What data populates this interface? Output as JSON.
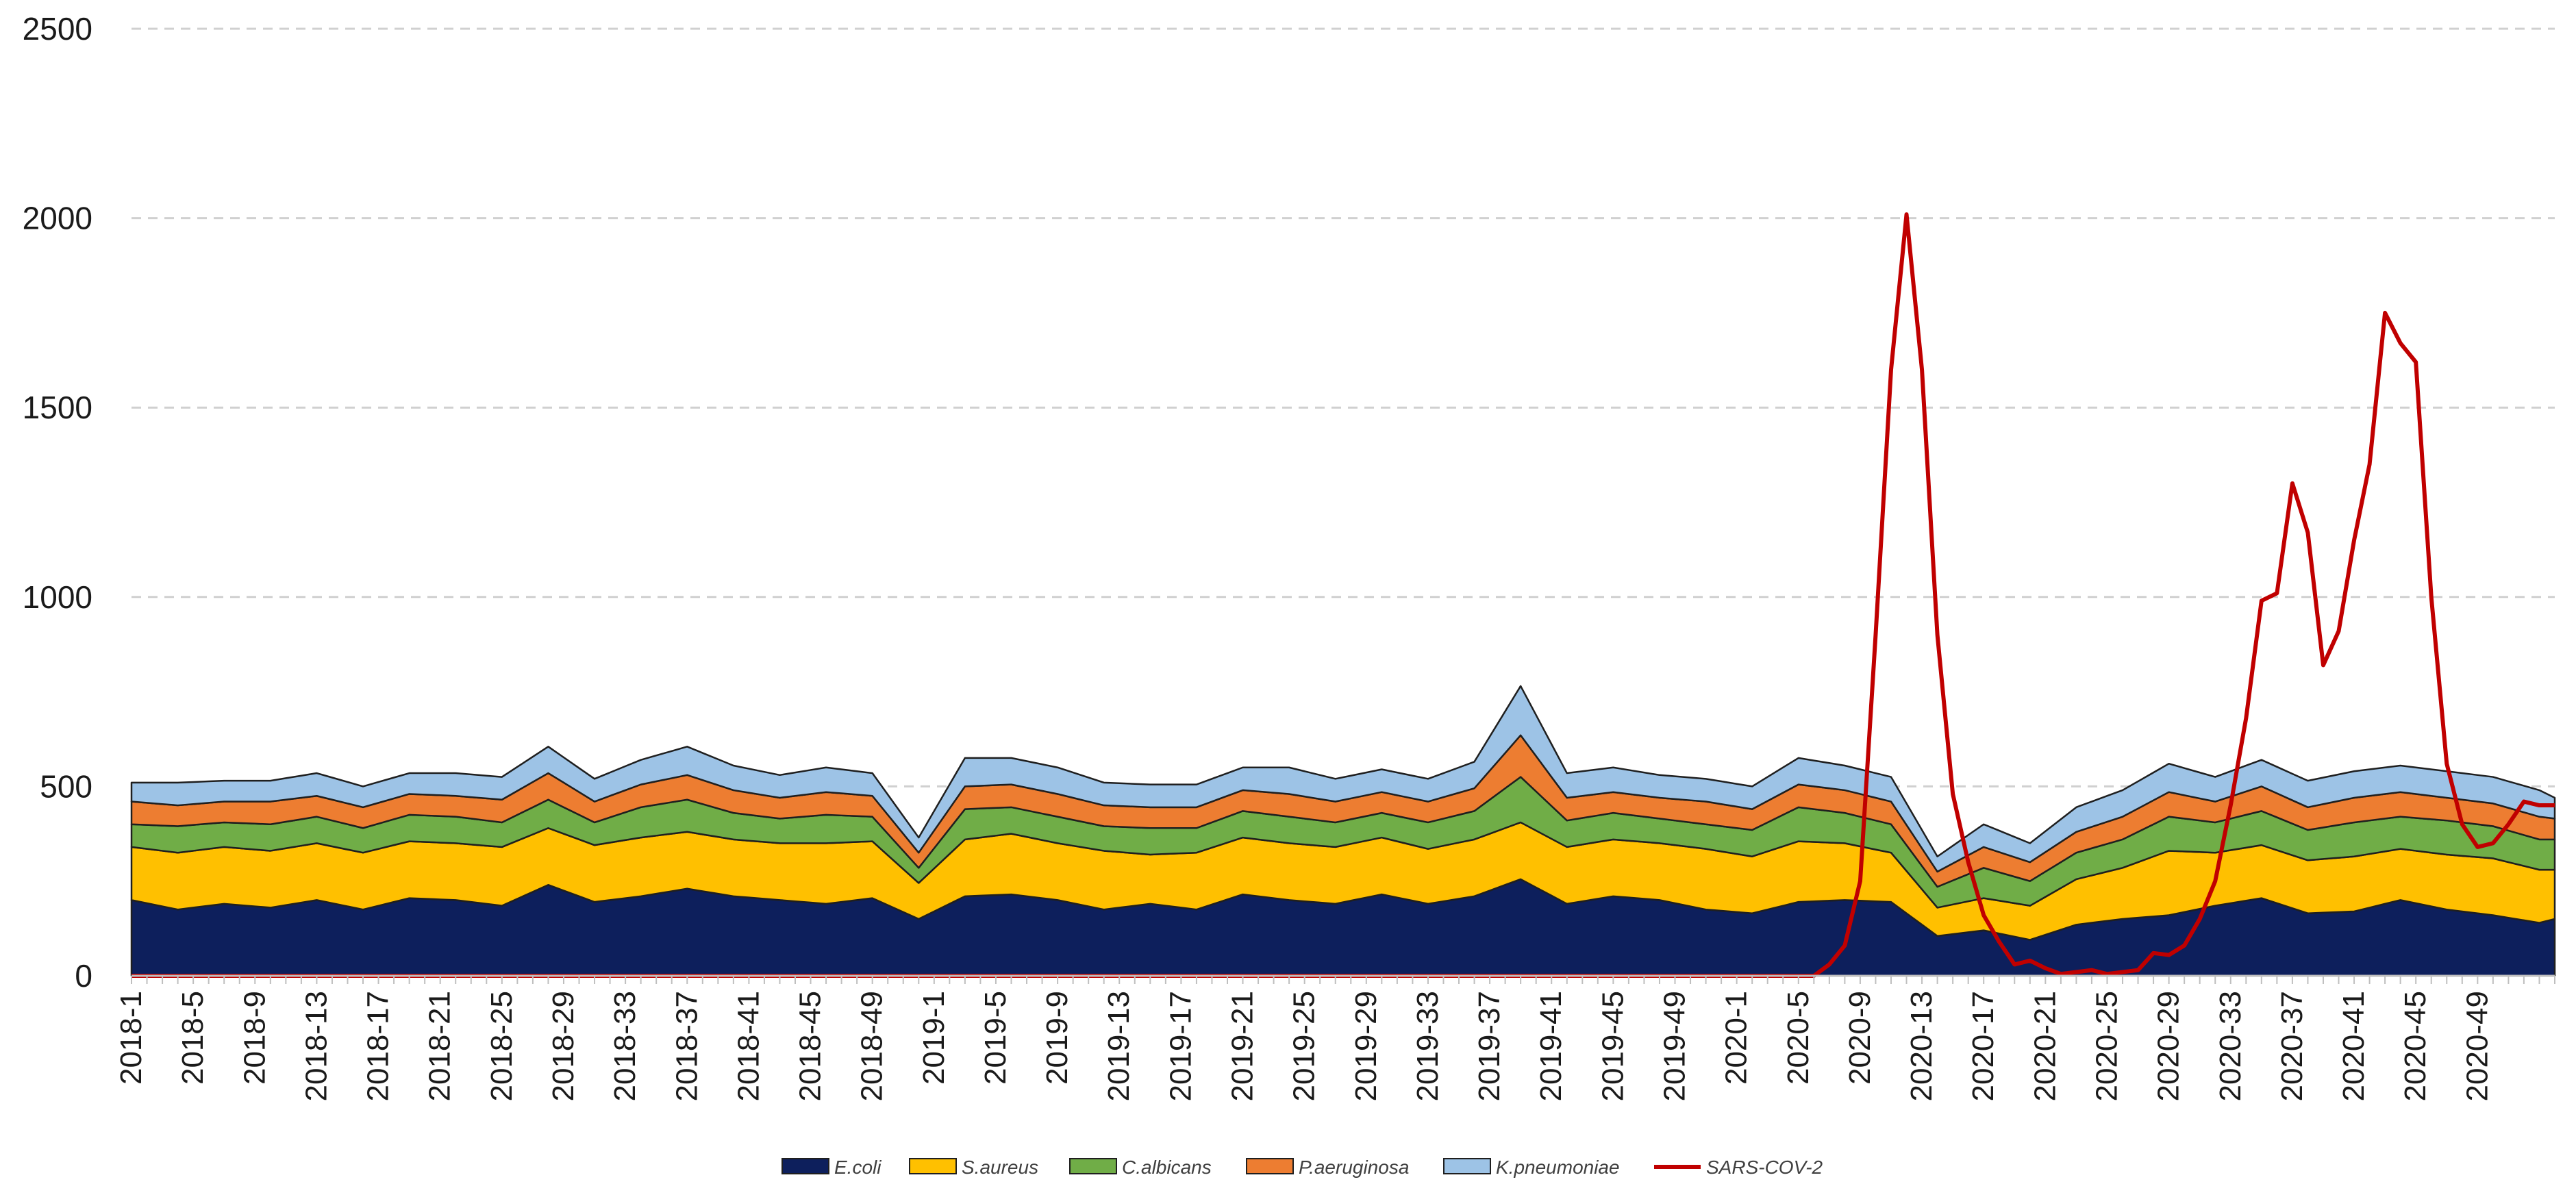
{
  "chart_data": {
    "type": "area",
    "title": "",
    "xlabel": "",
    "ylabel": "",
    "ylim": [
      0,
      2500
    ],
    "yticks": [
      0,
      500,
      1000,
      1500,
      2000,
      2500
    ],
    "grid": true,
    "legend_position": "bottom",
    "xtick_labels": [
      "2018-1",
      "2018-5",
      "2018-9",
      "2018-13",
      "2018-17",
      "2018-21",
      "2018-25",
      "2018-29",
      "2018-33",
      "2018-37",
      "2018-41",
      "2018-45",
      "2018-49",
      "2019-1",
      "2019-5",
      "2019-9",
      "2019-13",
      "2019-17",
      "2019-21",
      "2019-25",
      "2019-29",
      "2019-33",
      "2019-37",
      "2019-41",
      "2019-45",
      "2019-49",
      "2020-1",
      "2020-5",
      "2020-9",
      "2020-13",
      "2020-17",
      "2020-21",
      "2020-25",
      "2020-29",
      "2020-33",
      "2020-37",
      "2020-41",
      "2020-45",
      "2020-49"
    ],
    "n_points": 158,
    "stacked_series": [
      {
        "name": "E.coli",
        "color": "#0d1f5c",
        "segments": [
          [
            0,
            200
          ],
          [
            3,
            175
          ],
          [
            6,
            190
          ],
          [
            9,
            180
          ],
          [
            12,
            200
          ],
          [
            15,
            175
          ],
          [
            18,
            205
          ],
          [
            21,
            200
          ],
          [
            24,
            185
          ],
          [
            27,
            240
          ],
          [
            30,
            195
          ],
          [
            33,
            210
          ],
          [
            36,
            230
          ],
          [
            39,
            210
          ],
          [
            42,
            200
          ],
          [
            45,
            190
          ],
          [
            48,
            205
          ],
          [
            51,
            150
          ],
          [
            54,
            210
          ],
          [
            57,
            215
          ],
          [
            60,
            200
          ],
          [
            63,
            175
          ],
          [
            66,
            190
          ],
          [
            69,
            175
          ],
          [
            72,
            215
          ],
          [
            75,
            200
          ],
          [
            78,
            190
          ],
          [
            81,
            215
          ],
          [
            84,
            190
          ],
          [
            87,
            210
          ],
          [
            90,
            255
          ],
          [
            93,
            190
          ],
          [
            96,
            210
          ],
          [
            99,
            200
          ],
          [
            102,
            175
          ],
          [
            105,
            165
          ],
          [
            108,
            195
          ],
          [
            111,
            200
          ],
          [
            114,
            195
          ],
          [
            117,
            105
          ],
          [
            120,
            120
          ],
          [
            123,
            95
          ],
          [
            126,
            135
          ],
          [
            129,
            150
          ],
          [
            132,
            160
          ],
          [
            135,
            185
          ],
          [
            138,
            205
          ],
          [
            141,
            165
          ],
          [
            144,
            170
          ],
          [
            147,
            200
          ],
          [
            150,
            175
          ],
          [
            153,
            160
          ],
          [
            156,
            140
          ],
          [
            157,
            150
          ]
        ]
      },
      {
        "name": "S.aureus",
        "color": "#ffc000",
        "segments": [
          [
            0,
            140
          ],
          [
            3,
            150
          ],
          [
            6,
            150
          ],
          [
            9,
            150
          ],
          [
            12,
            150
          ],
          [
            15,
            150
          ],
          [
            18,
            150
          ],
          [
            21,
            150
          ],
          [
            24,
            155
          ],
          [
            27,
            150
          ],
          [
            30,
            150
          ],
          [
            33,
            155
          ],
          [
            36,
            150
          ],
          [
            39,
            150
          ],
          [
            42,
            150
          ],
          [
            45,
            160
          ],
          [
            48,
            150
          ],
          [
            51,
            95
          ],
          [
            54,
            150
          ],
          [
            57,
            160
          ],
          [
            60,
            150
          ],
          [
            63,
            155
          ],
          [
            66,
            130
          ],
          [
            69,
            150
          ],
          [
            72,
            150
          ],
          [
            75,
            150
          ],
          [
            78,
            150
          ],
          [
            81,
            150
          ],
          [
            84,
            145
          ],
          [
            87,
            150
          ],
          [
            90,
            150
          ],
          [
            93,
            150
          ],
          [
            96,
            150
          ],
          [
            99,
            150
          ],
          [
            102,
            160
          ],
          [
            105,
            150
          ],
          [
            108,
            160
          ],
          [
            111,
            150
          ],
          [
            114,
            130
          ],
          [
            117,
            75
          ],
          [
            120,
            85
          ],
          [
            123,
            90
          ],
          [
            126,
            120
          ],
          [
            129,
            135
          ],
          [
            132,
            170
          ],
          [
            135,
            140
          ],
          [
            138,
            140
          ],
          [
            141,
            140
          ],
          [
            144,
            145
          ],
          [
            147,
            135
          ],
          [
            150,
            145
          ],
          [
            153,
            150
          ],
          [
            156,
            140
          ],
          [
            157,
            130
          ]
        ]
      },
      {
        "name": "C.albicans",
        "color": "#70ad47",
        "segments": [
          [
            0,
            60
          ],
          [
            3,
            70
          ],
          [
            6,
            65
          ],
          [
            9,
            70
          ],
          [
            12,
            70
          ],
          [
            15,
            65
          ],
          [
            18,
            70
          ],
          [
            21,
            70
          ],
          [
            24,
            65
          ],
          [
            27,
            75
          ],
          [
            30,
            60
          ],
          [
            33,
            80
          ],
          [
            36,
            85
          ],
          [
            39,
            70
          ],
          [
            42,
            65
          ],
          [
            45,
            75
          ],
          [
            48,
            65
          ],
          [
            51,
            40
          ],
          [
            54,
            80
          ],
          [
            57,
            70
          ],
          [
            60,
            70
          ],
          [
            63,
            65
          ],
          [
            66,
            70
          ],
          [
            69,
            65
          ],
          [
            72,
            70
          ],
          [
            75,
            70
          ],
          [
            78,
            65
          ],
          [
            81,
            65
          ],
          [
            84,
            70
          ],
          [
            87,
            75
          ],
          [
            90,
            120
          ],
          [
            93,
            70
          ],
          [
            96,
            70
          ],
          [
            99,
            65
          ],
          [
            102,
            65
          ],
          [
            105,
            70
          ],
          [
            108,
            90
          ],
          [
            111,
            80
          ],
          [
            114,
            75
          ],
          [
            117,
            55
          ],
          [
            120,
            80
          ],
          [
            123,
            65
          ],
          [
            126,
            70
          ],
          [
            129,
            75
          ],
          [
            132,
            90
          ],
          [
            135,
            80
          ],
          [
            138,
            90
          ],
          [
            141,
            80
          ],
          [
            144,
            90
          ],
          [
            147,
            85
          ],
          [
            150,
            90
          ],
          [
            153,
            85
          ],
          [
            156,
            80
          ],
          [
            157,
            80
          ]
        ]
      },
      {
        "name": "P.aeruginosa",
        "color": "#ed7d31",
        "segments": [
          [
            0,
            60
          ],
          [
            3,
            55
          ],
          [
            6,
            55
          ],
          [
            9,
            60
          ],
          [
            12,
            55
          ],
          [
            15,
            55
          ],
          [
            18,
            55
          ],
          [
            21,
            55
          ],
          [
            24,
            60
          ],
          [
            27,
            70
          ],
          [
            30,
            55
          ],
          [
            33,
            60
          ],
          [
            36,
            65
          ],
          [
            39,
            60
          ],
          [
            42,
            55
          ],
          [
            45,
            60
          ],
          [
            48,
            55
          ],
          [
            51,
            40
          ],
          [
            54,
            60
          ],
          [
            57,
            60
          ],
          [
            60,
            60
          ],
          [
            63,
            55
          ],
          [
            66,
            55
          ],
          [
            69,
            55
          ],
          [
            72,
            55
          ],
          [
            75,
            60
          ],
          [
            78,
            55
          ],
          [
            81,
            55
          ],
          [
            84,
            55
          ],
          [
            87,
            60
          ],
          [
            90,
            110
          ],
          [
            93,
            60
          ],
          [
            96,
            55
          ],
          [
            99,
            55
          ],
          [
            102,
            60
          ],
          [
            105,
            55
          ],
          [
            108,
            60
          ],
          [
            111,
            60
          ],
          [
            114,
            60
          ],
          [
            117,
            40
          ],
          [
            120,
            55
          ],
          [
            123,
            50
          ],
          [
            126,
            55
          ],
          [
            129,
            60
          ],
          [
            132,
            65
          ],
          [
            135,
            55
          ],
          [
            138,
            65
          ],
          [
            141,
            60
          ],
          [
            144,
            65
          ],
          [
            147,
            65
          ],
          [
            150,
            60
          ],
          [
            153,
            60
          ],
          [
            156,
            60
          ],
          [
            157,
            55
          ]
        ]
      },
      {
        "name": "K.pneumoniae",
        "color": "#9dc3e6",
        "segments": [
          [
            0,
            50
          ],
          [
            3,
            60
          ],
          [
            6,
            55
          ],
          [
            9,
            55
          ],
          [
            12,
            60
          ],
          [
            15,
            55
          ],
          [
            18,
            55
          ],
          [
            21,
            60
          ],
          [
            24,
            60
          ],
          [
            27,
            70
          ],
          [
            30,
            60
          ],
          [
            33,
            65
          ],
          [
            36,
            75
          ],
          [
            39,
            65
          ],
          [
            42,
            60
          ],
          [
            45,
            65
          ],
          [
            48,
            60
          ],
          [
            51,
            40
          ],
          [
            54,
            75
          ],
          [
            57,
            70
          ],
          [
            60,
            70
          ],
          [
            63,
            60
          ],
          [
            66,
            60
          ],
          [
            69,
            60
          ],
          [
            72,
            60
          ],
          [
            75,
            70
          ],
          [
            78,
            60
          ],
          [
            81,
            60
          ],
          [
            84,
            60
          ],
          [
            87,
            70
          ],
          [
            90,
            130
          ],
          [
            93,
            65
          ],
          [
            96,
            65
          ],
          [
            99,
            60
          ],
          [
            102,
            60
          ],
          [
            105,
            60
          ],
          [
            108,
            70
          ],
          [
            111,
            65
          ],
          [
            114,
            65
          ],
          [
            117,
            40
          ],
          [
            120,
            60
          ],
          [
            123,
            50
          ],
          [
            126,
            65
          ],
          [
            129,
            70
          ],
          [
            132,
            75
          ],
          [
            135,
            65
          ],
          [
            138,
            70
          ],
          [
            141,
            70
          ],
          [
            144,
            70
          ],
          [
            147,
            70
          ],
          [
            150,
            70
          ],
          [
            153,
            70
          ],
          [
            156,
            70
          ],
          [
            157,
            55
          ]
        ]
      }
    ],
    "line_series": {
      "name": "SARS-COV-2",
      "color": "#c00000",
      "points": [
        [
          0,
          0
        ],
        [
          109,
          0
        ],
        [
          110,
          30
        ],
        [
          111,
          80
        ],
        [
          112,
          250
        ],
        [
          113,
          900
        ],
        [
          114,
          1600
        ],
        [
          115,
          2010
        ],
        [
          116,
          1600
        ],
        [
          117,
          900
        ],
        [
          118,
          480
        ],
        [
          119,
          300
        ],
        [
          120,
          160
        ],
        [
          121,
          90
        ],
        [
          122,
          30
        ],
        [
          123,
          40
        ],
        [
          124,
          20
        ],
        [
          125,
          5
        ],
        [
          126,
          10
        ],
        [
          127,
          15
        ],
        [
          128,
          5
        ],
        [
          129,
          10
        ],
        [
          130,
          15
        ],
        [
          131,
          60
        ],
        [
          132,
          55
        ],
        [
          133,
          80
        ],
        [
          134,
          150
        ],
        [
          135,
          250
        ],
        [
          136,
          450
        ],
        [
          137,
          680
        ],
        [
          138,
          990
        ],
        [
          139,
          1010
        ],
        [
          140,
          1300
        ],
        [
          141,
          1170
        ],
        [
          142,
          820
        ],
        [
          143,
          910
        ],
        [
          144,
          1150
        ],
        [
          145,
          1350
        ],
        [
          146,
          1750
        ],
        [
          147,
          1670
        ],
        [
          148,
          1620
        ],
        [
          149,
          1000
        ],
        [
          150,
          560
        ],
        [
          151,
          400
        ],
        [
          152,
          340
        ],
        [
          153,
          350
        ],
        [
          154,
          400
        ],
        [
          155,
          460
        ],
        [
          156,
          450
        ],
        [
          157,
          450
        ]
      ]
    }
  }
}
